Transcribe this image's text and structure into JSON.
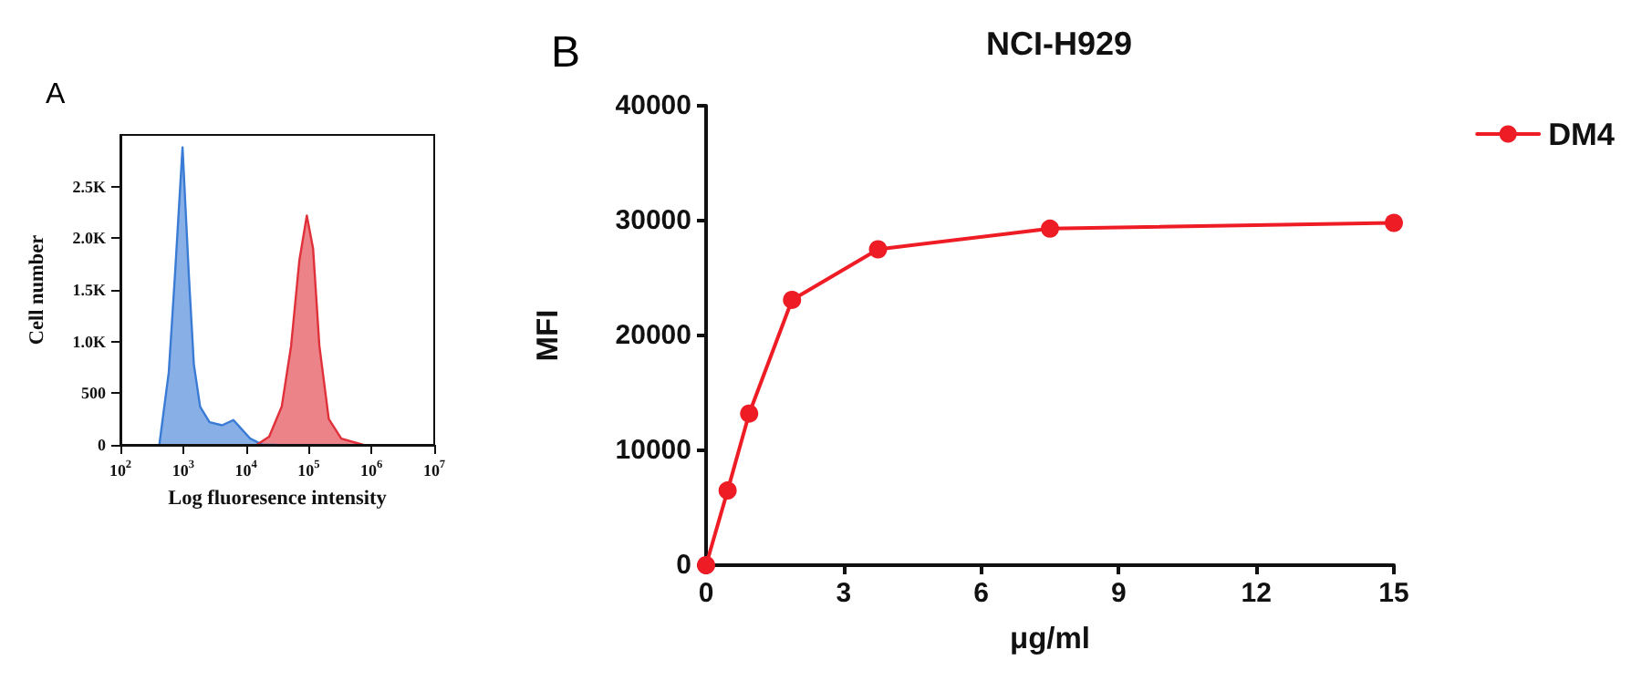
{
  "chart_data": [
    {
      "type": "area",
      "annotations": [
        "A"
      ],
      "xlabel": "Log fluoresence intensity",
      "ylabel": "Cell number",
      "log": "x",
      "xlim": [
        100,
        10000000
      ],
      "xticks": [
        {
          "value": 100,
          "label": "10$^{2}$"
        },
        {
          "value": 1000,
          "label": "10$^{3}$"
        },
        {
          "value": 10000,
          "label": "10$^{4}$"
        },
        {
          "value": 100000,
          "label": "10$^{5}$"
        },
        {
          "value": 1000000,
          "label": "10$^{6}$"
        },
        {
          "value": 10000000,
          "label": "10$^{7}$"
        }
      ],
      "ylim": [
        0,
        3000
      ],
      "yticks": [
        0,
        500,
        {
          "value": 1000,
          "label": "1.0K"
        },
        {
          "value": 1500,
          "label": "1.5K"
        },
        {
          "value": 2000,
          "label": "2.0K"
        },
        {
          "value": 2500,
          "label": "2.5K"
        }
      ],
      "series": [
        {
          "color": "#3a7bd5",
          "x": [
            417,
            589,
            741,
            977,
            1230,
            1479,
            1862,
            2630,
            4169,
            6310,
            8318,
            11750,
            18620,
            30000
          ],
          "values": [
            0,
            700,
            1650,
            2880,
            1650,
            780,
            370,
            220,
            190,
            240,
            160,
            60,
            0,
            0
          ]
        },
        {
          "color": "#e0303a",
          "x": [
            14790,
            23440,
            37150,
            52480,
            70790,
            93330,
            117500,
            147900,
            208900,
            331100,
            741300
          ],
          "values": [
            0,
            80,
            370,
            960,
            1780,
            2220,
            1900,
            960,
            250,
            60,
            0
          ]
        }
      ]
    },
    {
      "type": "line",
      "annotations": [
        "B"
      ],
      "title": "NCI-H929",
      "xlabel": "μg/ml",
      "ylabel": "MFI",
      "xlim": [
        0,
        15
      ],
      "xticks": [
        0,
        3,
        6,
        9,
        12,
        15
      ],
      "ylim": [
        0,
        40000
      ],
      "yticks": [
        0,
        10000,
        20000,
        30000,
        40000
      ],
      "legend": "top right",
      "marker": "circle",
      "series": [
        {
          "name": "DM4",
          "color": "#ee1c25",
          "x": [
            0,
            0.47,
            0.94,
            1.875,
            3.75,
            7.5,
            15
          ],
          "values": [
            0,
            6500,
            13200,
            23100,
            27500,
            29300,
            29800
          ]
        }
      ]
    }
  ]
}
